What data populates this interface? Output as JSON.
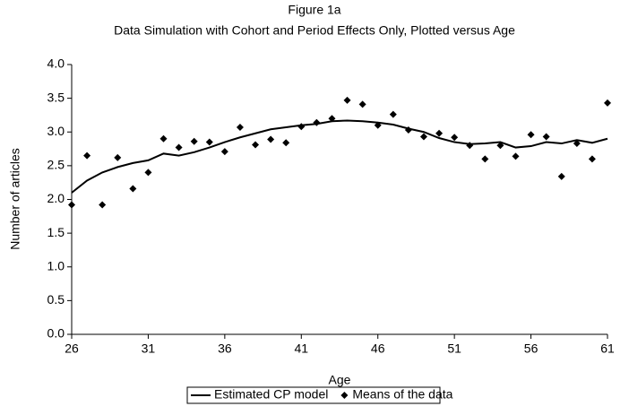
{
  "chart_data": {
    "type": "combo",
    "title": "Figure 1a",
    "subtitle": "Data Simulation with Cohort and Period Effects Only, Plotted versus Age",
    "x_label": "Age",
    "y_label": "Number of articles",
    "x": [
      26,
      27,
      28,
      29,
      30,
      31,
      32,
      33,
      34,
      35,
      36,
      37,
      38,
      39,
      40,
      41,
      42,
      43,
      44,
      45,
      46,
      47,
      48,
      49,
      50,
      51,
      52,
      53,
      54,
      55,
      56,
      57,
      58,
      59,
      60,
      61
    ],
    "series": [
      {
        "name": "Estimated CP model",
        "color": "#000000",
        "type": "line",
        "values": [
          2.1,
          2.28,
          2.4,
          2.48,
          2.54,
          2.58,
          2.68,
          2.65,
          2.7,
          2.77,
          2.85,
          2.92,
          2.98,
          3.04,
          3.07,
          3.1,
          3.12,
          3.16,
          3.17,
          3.16,
          3.14,
          3.11,
          3.05,
          3.0,
          2.91,
          2.85,
          2.82,
          2.83,
          2.85,
          2.77,
          2.79,
          2.85,
          2.83,
          2.88,
          2.84,
          2.9
        ]
      },
      {
        "name": "Means of the data",
        "color": "#000000",
        "type": "scatter",
        "values": [
          1.92,
          2.65,
          1.92,
          2.62,
          2.16,
          2.4,
          2.9,
          2.77,
          2.86,
          2.85,
          2.71,
          3.07,
          2.81,
          2.89,
          2.84,
          3.08,
          3.14,
          3.2,
          3.47,
          3.41,
          3.1,
          3.26,
          3.03,
          2.93,
          2.98,
          2.92,
          2.8,
          2.6,
          2.8,
          2.64,
          2.96,
          2.93,
          2.34,
          2.83,
          2.6,
          3.43
        ]
      }
    ],
    "xlim": [
      26,
      61
    ],
    "xticks": [
      26,
      31,
      36,
      41,
      46,
      51,
      56,
      61
    ],
    "ylim": [
      0,
      4
    ],
    "yticks": [
      {
        "value": 0,
        "label": "0.0"
      },
      {
        "value": 0.5,
        "label": "0.5"
      },
      {
        "value": 1,
        "label": "1.0"
      },
      {
        "value": 1.5,
        "label": "1.5"
      },
      {
        "value": 2,
        "label": "2.0"
      },
      {
        "value": 2.5,
        "label": "2.5"
      },
      {
        "value": 3,
        "label": "3.0"
      },
      {
        "value": 3.5,
        "label": "3.5"
      },
      {
        "value": 4,
        "label": "4.0"
      }
    ],
    "grid": false,
    "legend": "bottom"
  }
}
